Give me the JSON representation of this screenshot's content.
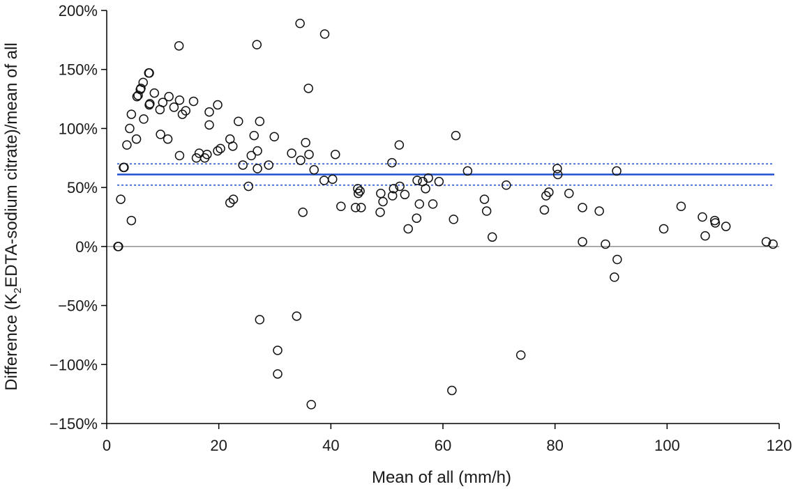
{
  "chart_data": {
    "type": "scatter",
    "xlabel": "Mean of all (mm/h)",
    "ylabel_parts": [
      "Difference (K",
      "2",
      "EDTA-sodium citrate)/mean of all"
    ],
    "xlim": [
      0,
      120
    ],
    "ylim": [
      -150,
      200
    ],
    "x_ticks": [
      0,
      20,
      40,
      60,
      80,
      100,
      120
    ],
    "x_tick_labels": [
      "0",
      "20",
      "40",
      "60",
      "80",
      "100",
      "120"
    ],
    "y_ticks": [
      -150,
      -100,
      -50,
      0,
      50,
      100,
      150,
      200
    ],
    "y_tick_labels": [
      "−150%",
      "−100%",
      "−50%",
      "0%",
      "50%",
      "100%",
      "150%",
      "200%"
    ],
    "zero_line": 0,
    "mean_difference": 61,
    "mean_ci": [
      52,
      70
    ],
    "colors": {
      "mean_line": "#1f4fd1",
      "points": "#111111",
      "zero_line": "#7a7a7a"
    },
    "points": [
      [
        2,
        0
      ],
      [
        2.1,
        0
      ],
      [
        2.5,
        40
      ],
      [
        3,
        67
      ],
      [
        3.1,
        67
      ],
      [
        3.6,
        86
      ],
      [
        4.1,
        100
      ],
      [
        4.4,
        112
      ],
      [
        4.4,
        22
      ],
      [
        5.3,
        91
      ],
      [
        5.4,
        127
      ],
      [
        5.6,
        128
      ],
      [
        6,
        133
      ],
      [
        6.1,
        134
      ],
      [
        6.5,
        139
      ],
      [
        6.6,
        108
      ],
      [
        7.5,
        147
      ],
      [
        7.6,
        147
      ],
      [
        7.6,
        120
      ],
      [
        7.7,
        121
      ],
      [
        8.5,
        130
      ],
      [
        9.5,
        116
      ],
      [
        9.6,
        95
      ],
      [
        10,
        122
      ],
      [
        10.9,
        91
      ],
      [
        11.1,
        127
      ],
      [
        12,
        118
      ],
      [
        12.9,
        170
      ],
      [
        13,
        124
      ],
      [
        13,
        77
      ],
      [
        13.5,
        112
      ],
      [
        14.1,
        115
      ],
      [
        15.5,
        123
      ],
      [
        16,
        75
      ],
      [
        16.5,
        79
      ],
      [
        17.5,
        75
      ],
      [
        17.9,
        78
      ],
      [
        18.3,
        114
      ],
      [
        18.3,
        103
      ],
      [
        19.8,
        120
      ],
      [
        19.8,
        81
      ],
      [
        20.3,
        83
      ],
      [
        22,
        91
      ],
      [
        22,
        37
      ],
      [
        22.5,
        85
      ],
      [
        22.6,
        40
      ],
      [
        23.5,
        106
      ],
      [
        24.3,
        69
      ],
      [
        25.3,
        51
      ],
      [
        25.8,
        77
      ],
      [
        26.3,
        94
      ],
      [
        26.8,
        171
      ],
      [
        26.9,
        81
      ],
      [
        26.9,
        66
      ],
      [
        27.3,
        106
      ],
      [
        27.3,
        -62
      ],
      [
        28.9,
        69
      ],
      [
        29.9,
        93
      ],
      [
        30.5,
        -88
      ],
      [
        30.5,
        -108
      ],
      [
        33,
        79
      ],
      [
        33.9,
        -59
      ],
      [
        34.5,
        189
      ],
      [
        34.6,
        73
      ],
      [
        35,
        29
      ],
      [
        35.5,
        88
      ],
      [
        36,
        134
      ],
      [
        36.1,
        78
      ],
      [
        36.5,
        -134
      ],
      [
        37,
        65
      ],
      [
        38.8,
        56
      ],
      [
        38.9,
        180
      ],
      [
        40.3,
        57
      ],
      [
        40.8,
        78
      ],
      [
        41.8,
        34
      ],
      [
        44.4,
        33
      ],
      [
        44.8,
        49
      ],
      [
        44.9,
        45
      ],
      [
        45.2,
        47
      ],
      [
        45.4,
        33
      ],
      [
        48.8,
        29
      ],
      [
        48.9,
        45
      ],
      [
        49.3,
        38
      ],
      [
        50.9,
        71
      ],
      [
        51,
        43
      ],
      [
        51.2,
        49
      ],
      [
        52.2,
        86
      ],
      [
        52.3,
        51
      ],
      [
        53.2,
        44
      ],
      [
        53.8,
        15
      ],
      [
        55.3,
        24
      ],
      [
        55.4,
        56
      ],
      [
        55.8,
        36
      ],
      [
        56.4,
        55
      ],
      [
        56.9,
        49
      ],
      [
        57.4,
        58
      ],
      [
        58.2,
        36
      ],
      [
        59.3,
        55
      ],
      [
        61.6,
        -122
      ],
      [
        61.9,
        23
      ],
      [
        62.3,
        94
      ],
      [
        64.4,
        64
      ],
      [
        67.4,
        40
      ],
      [
        67.8,
        30
      ],
      [
        68.8,
        8
      ],
      [
        71.3,
        52
      ],
      [
        73.9,
        -92
      ],
      [
        78.1,
        31
      ],
      [
        78.4,
        43
      ],
      [
        78.9,
        46
      ],
      [
        80.4,
        66
      ],
      [
        80.5,
        61
      ],
      [
        82.5,
        45
      ],
      [
        84.9,
        33
      ],
      [
        84.9,
        4
      ],
      [
        87.9,
        30
      ],
      [
        89,
        2
      ],
      [
        90.6,
        -26
      ],
      [
        91,
        64
      ],
      [
        91.1,
        -11
      ],
      [
        99.4,
        15
      ],
      [
        102.5,
        34
      ],
      [
        106.3,
        25
      ],
      [
        106.8,
        9
      ],
      [
        108.5,
        22
      ],
      [
        108.6,
        20
      ],
      [
        110.5,
        17
      ],
      [
        117.7,
        4
      ],
      [
        118.9,
        2
      ]
    ]
  }
}
